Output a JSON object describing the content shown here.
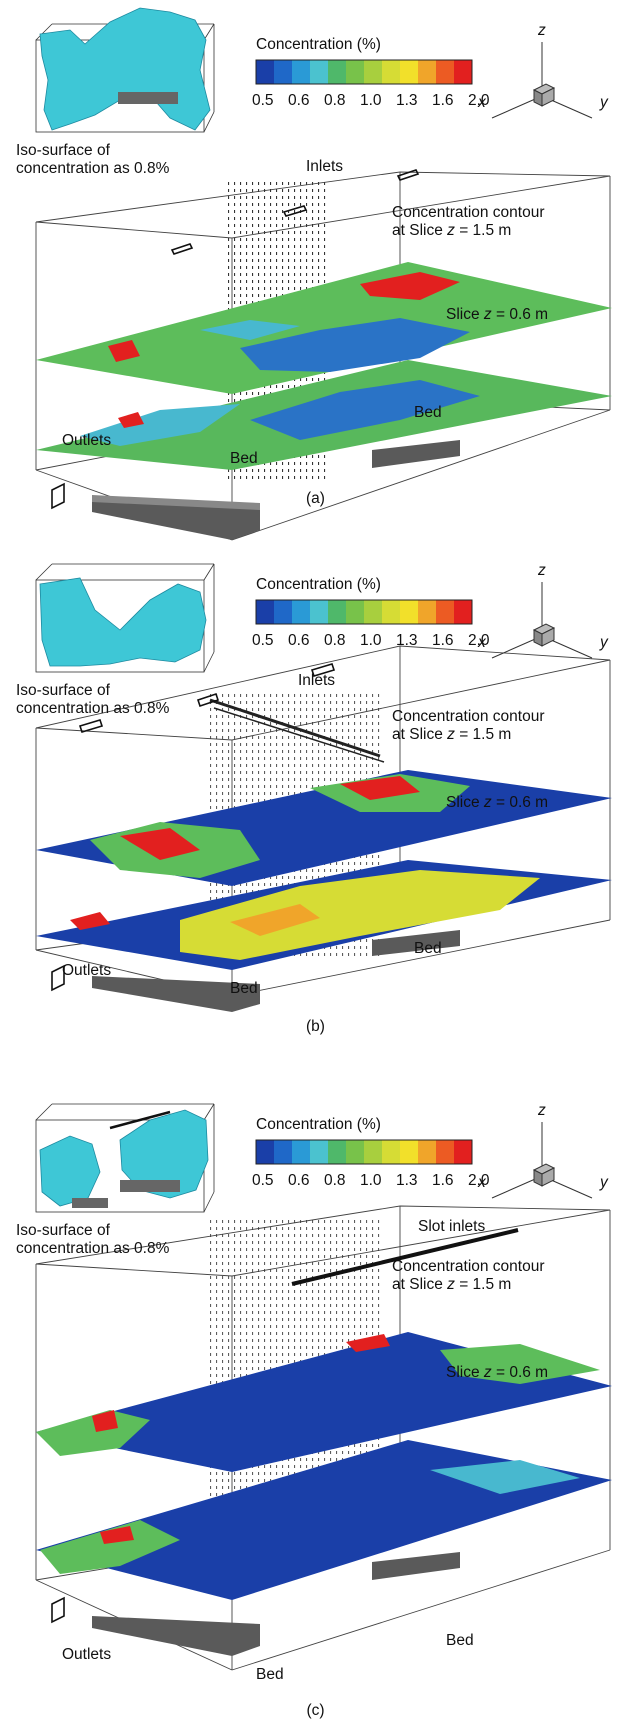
{
  "legend": {
    "title": "Concentration (%)",
    "ticks": [
      "0.5",
      "0.6",
      "0.8",
      "1.0",
      "1.3",
      "1.6",
      "2.0"
    ],
    "colors": [
      "#1a3fa8",
      "#1f68c8",
      "#2a9ad6",
      "#4bc2cf",
      "#4fb86a",
      "#78c24a",
      "#a8cf3e",
      "#d6dc35",
      "#f2e02a",
      "#f0a52a",
      "#ec5b23",
      "#e2201f"
    ]
  },
  "axes": {
    "x": "x",
    "y": "y",
    "z": "z"
  },
  "common": {
    "iso_label_line1": "Iso-surface of",
    "iso_label_line2": "concentration as 0.8%",
    "contour_line1": "Concentration contour",
    "contour_line2_prefix": "at Slice ",
    "contour_line2_var": "z",
    "contour_line2_suffix": " = 1.5 m",
    "slice_prefix": "Slice ",
    "slice_var": "z",
    "slice_suffix": " = 0.6 m",
    "outlets": "Outlets",
    "bed": "Bed"
  },
  "panels": [
    {
      "inlets": "Inlets",
      "caption": "(a)"
    },
    {
      "inlets": "Inlets",
      "caption": "(b)"
    },
    {
      "inlets": "Slot inlets",
      "caption": "(c)"
    }
  ]
}
